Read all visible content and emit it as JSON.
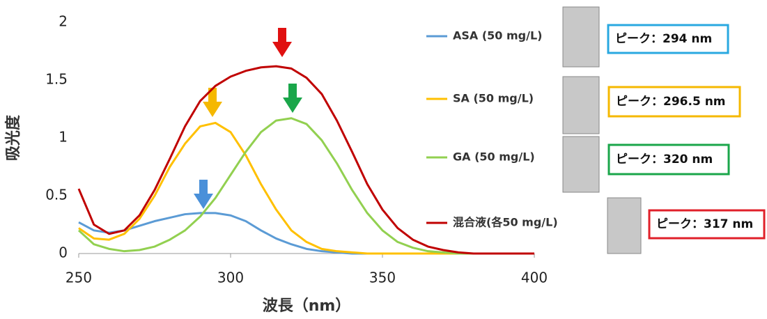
{
  "chart_data": {
    "type": "line",
    "x_label": "波長（nm）",
    "y_label": "吸光度",
    "x": [
      250,
      255,
      260,
      265,
      270,
      275,
      280,
      285,
      290,
      295,
      300,
      305,
      310,
      315,
      320,
      325,
      330,
      335,
      340,
      345,
      350,
      355,
      360,
      365,
      370,
      375,
      380,
      385,
      390,
      395,
      400
    ],
    "series": [
      {
        "name": "ASA (50 mg/L)",
        "color": "#5b9bd5",
        "values": [
          0.27,
          0.2,
          0.18,
          0.2,
          0.24,
          0.28,
          0.31,
          0.34,
          0.35,
          0.35,
          0.33,
          0.28,
          0.2,
          0.13,
          0.08,
          0.04,
          0.02,
          0.01,
          0,
          0,
          0,
          0,
          0,
          0,
          0,
          0,
          0,
          0,
          0,
          0,
          0
        ]
      },
      {
        "name": "SA (50 mg/L)",
        "color": "#ffc000",
        "values": [
          0.22,
          0.13,
          0.12,
          0.17,
          0.3,
          0.5,
          0.75,
          0.95,
          1.1,
          1.13,
          1.05,
          0.85,
          0.6,
          0.38,
          0.2,
          0.1,
          0.04,
          0.02,
          0.01,
          0,
          0,
          0,
          0,
          0,
          0,
          0,
          0,
          0,
          0,
          0,
          0
        ]
      },
      {
        "name": "GA (50 mg/L)",
        "color": "#92d050",
        "values": [
          0.2,
          0.08,
          0.04,
          0.02,
          0.03,
          0.06,
          0.12,
          0.2,
          0.32,
          0.48,
          0.68,
          0.88,
          1.05,
          1.15,
          1.17,
          1.12,
          0.98,
          0.78,
          0.55,
          0.35,
          0.2,
          0.1,
          0.05,
          0.02,
          0.01,
          0,
          0,
          0,
          0,
          0,
          0
        ]
      },
      {
        "name": "混合液(各50 mg/L)",
        "color": "#c00000",
        "values": [
          0.56,
          0.25,
          0.17,
          0.2,
          0.33,
          0.55,
          0.82,
          1.1,
          1.32,
          1.45,
          1.53,
          1.58,
          1.61,
          1.62,
          1.6,
          1.52,
          1.38,
          1.15,
          0.88,
          0.6,
          0.38,
          0.22,
          0.12,
          0.06,
          0.03,
          0.01,
          0,
          0,
          0,
          0,
          0
        ]
      }
    ],
    "xlim": [
      250,
      400
    ],
    "xticks": [
      250,
      300,
      350,
      400
    ],
    "ylim": [
      0,
      2
    ],
    "yticks": [
      0,
      0.5,
      1,
      1.5,
      2
    ],
    "annotations": [
      {
        "text": "ピーク：294 nm",
        "color": "#29a8e0"
      },
      {
        "text": "ピーク：296.5 nm",
        "color": "#f5b800"
      },
      {
        "text": "ピーク：320 nm",
        "color": "#1aa64a"
      },
      {
        "text": "ピーク：317 nm",
        "color": "#e0202a"
      }
    ]
  }
}
